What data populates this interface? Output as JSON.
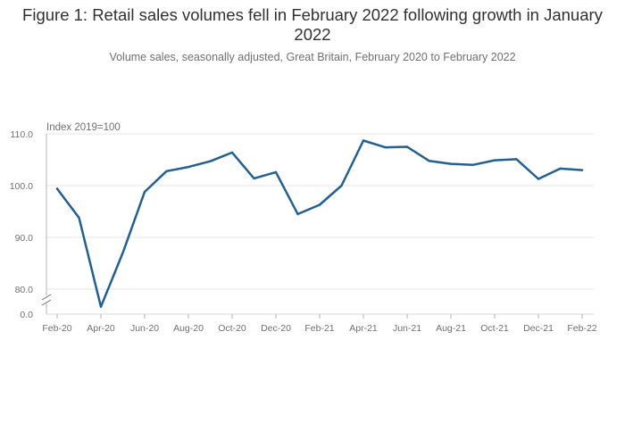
{
  "title": "Figure 1: Retail sales volumes fell in February 2022 following growth in January 2022",
  "subtitle": "Volume sales, seasonally adjusted, Great Britain, February 2020 to February 2022",
  "colors": {
    "line": "#206095",
    "axis": "#707071",
    "grid": "#e6e6e6",
    "text": "#414042"
  },
  "chart_data": {
    "type": "line",
    "title": "Figure 1: Retail sales volumes fell in February 2022 following growth in January 2022",
    "subtitle": "Volume sales, seasonally adjusted, Great Britain, February 2020 to February 2022",
    "ylabel": "Index 2019=100",
    "xlabel": "",
    "y_axis_break": true,
    "ylim": [
      75.0,
      110.0
    ],
    "y_ticks": [
      {
        "value": 0,
        "label": "0.0"
      },
      {
        "value": 80,
        "label": "80.0"
      },
      {
        "value": 90,
        "label": "90.0"
      },
      {
        "value": 100,
        "label": "100.0"
      },
      {
        "value": 110,
        "label": "110.0"
      }
    ],
    "x": [
      "Feb-20",
      "Mar-20",
      "Apr-20",
      "May-20",
      "Jun-20",
      "Jul-20",
      "Aug-20",
      "Sep-20",
      "Oct-20",
      "Nov-20",
      "Dec-20",
      "Jan-21",
      "Feb-21",
      "Mar-21",
      "Apr-21",
      "May-21",
      "Jun-21",
      "Jul-21",
      "Aug-21",
      "Sep-21",
      "Oct-21",
      "Nov-21",
      "Dec-21",
      "Jan-22",
      "Feb-22"
    ],
    "x_tick_labels": [
      "Feb-20",
      "Apr-20",
      "Jun-20",
      "Aug-20",
      "Oct-20",
      "Dec-20",
      "Feb-21",
      "Apr-21",
      "Jun-21",
      "Aug-21",
      "Oct-21",
      "Dec-21",
      "Feb-22"
    ],
    "series": [
      {
        "values": [
          99.4,
          93.8,
          76.6,
          87.0,
          98.8,
          102.8,
          103.6,
          104.7,
          106.4,
          101.4,
          102.6,
          94.5,
          96.3,
          100.0,
          108.7,
          107.4,
          107.5,
          104.8,
          104.2,
          104.0,
          104.9,
          105.1,
          101.3,
          103.3,
          103.0
        ]
      }
    ],
    "grid": true,
    "legend": "none"
  }
}
